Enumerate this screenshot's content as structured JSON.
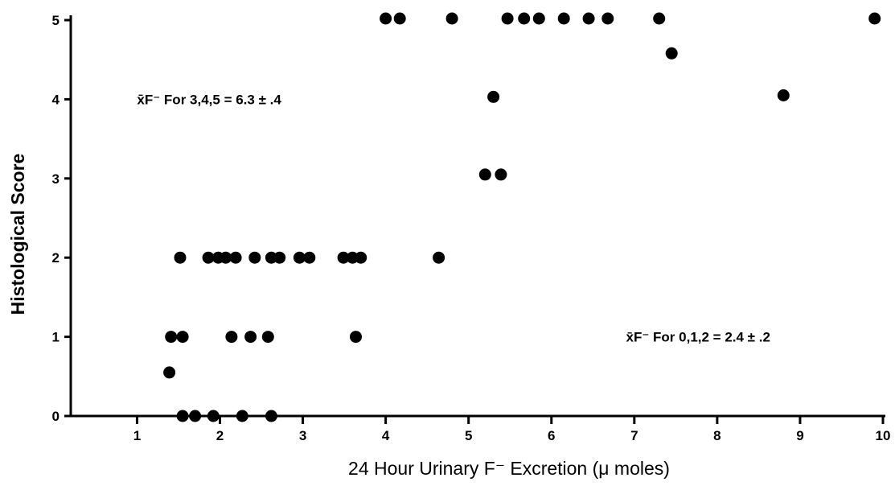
{
  "chart_data": {
    "type": "scatter",
    "title": "",
    "xlabel": "24 Hour Urinary F⁻  Excretion (μ moles)",
    "ylabel": "Histological Score",
    "xlim": [
      0.2,
      10
    ],
    "ylim": [
      0,
      5
    ],
    "x_ticks": [
      1,
      2,
      3,
      4,
      5,
      6,
      7,
      8,
      9,
      10
    ],
    "y_ticks": [
      0,
      1,
      2,
      3,
      4,
      5
    ],
    "grid": false,
    "legend": "none",
    "marker_color": "#000000",
    "annotations": [
      {
        "text": "x̄F⁻  For 3,4,5 = 6.3 ± .4",
        "x": 1.0,
        "y": 4.0
      },
      {
        "text": "x̄F⁻  For 0,1,2 = 2.4 ± .2",
        "x": 6.9,
        "y": 1.0
      }
    ],
    "series": [
      {
        "points": [
          [
            1.39,
            0.55
          ],
          [
            1.55,
            0
          ],
          [
            1.7,
            0
          ],
          [
            1.92,
            0
          ],
          [
            2.27,
            0
          ],
          [
            2.62,
            0
          ],
          [
            1.41,
            1
          ],
          [
            1.55,
            1
          ],
          [
            2.14,
            1
          ],
          [
            2.37,
            1
          ],
          [
            2.58,
            1
          ],
          [
            3.64,
            1
          ],
          [
            1.52,
            2
          ],
          [
            1.86,
            2
          ],
          [
            1.98,
            2
          ],
          [
            2.07,
            2
          ],
          [
            2.19,
            2
          ],
          [
            2.42,
            2
          ],
          [
            2.62,
            2
          ],
          [
            2.72,
            2
          ],
          [
            2.96,
            2
          ],
          [
            3.08,
            2
          ],
          [
            3.49,
            2
          ],
          [
            3.6,
            2
          ],
          [
            3.7,
            2
          ],
          [
            4.64,
            2
          ],
          [
            5.2,
            3.05
          ],
          [
            5.39,
            3.05
          ],
          [
            5.3,
            4.03
          ],
          [
            8.8,
            4.05
          ],
          [
            7.45,
            4.58
          ],
          [
            4.0,
            5.02
          ],
          [
            4.17,
            5.02
          ],
          [
            4.8,
            5.02
          ],
          [
            5.47,
            5.02
          ],
          [
            5.67,
            5.02
          ],
          [
            5.85,
            5.02
          ],
          [
            6.15,
            5.02
          ],
          [
            6.45,
            5.02
          ],
          [
            6.68,
            5.02
          ],
          [
            7.3,
            5.02
          ],
          [
            9.9,
            5.02
          ]
        ]
      }
    ]
  }
}
